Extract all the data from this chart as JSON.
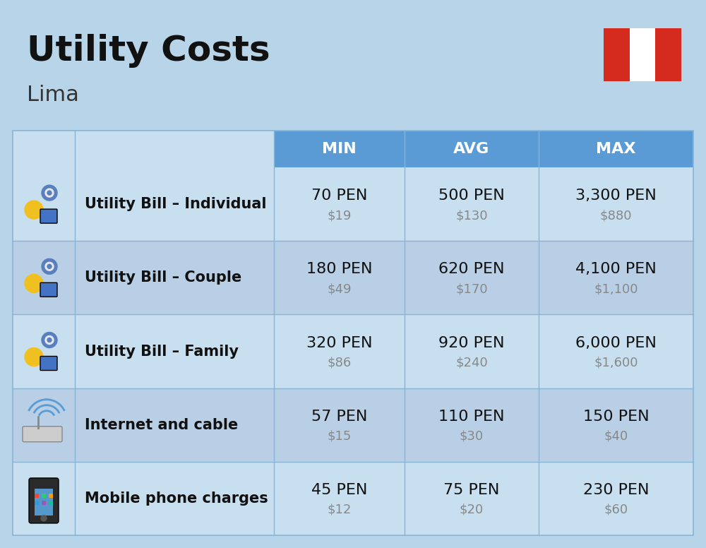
{
  "title": "Utility Costs",
  "subtitle": "Lima",
  "bg_color": "#b8d4e8",
  "header_bg": "#5b9bd5",
  "header_text_color": "#ffffff",
  "row_bg_light": "#c8dff0",
  "row_bg_dark": "#b8cfe5",
  "divider_color": "#8ab4d4",
  "header_cols": [
    "MIN",
    "AVG",
    "MAX"
  ],
  "rows": [
    {
      "label": "Utility Bill – Individual",
      "min_pen": "70 PEN",
      "min_usd": "$19",
      "avg_pen": "500 PEN",
      "avg_usd": "$130",
      "max_pen": "3,300 PEN",
      "max_usd": "$880"
    },
    {
      "label": "Utility Bill – Couple",
      "min_pen": "180 PEN",
      "min_usd": "$49",
      "avg_pen": "620 PEN",
      "avg_usd": "$170",
      "max_pen": "4,100 PEN",
      "max_usd": "$1,100"
    },
    {
      "label": "Utility Bill – Family",
      "min_pen": "320 PEN",
      "min_usd": "$86",
      "avg_pen": "920 PEN",
      "avg_usd": "$240",
      "max_pen": "6,000 PEN",
      "max_usd": "$1,600"
    },
    {
      "label": "Internet and cable",
      "min_pen": "57 PEN",
      "min_usd": "$15",
      "avg_pen": "110 PEN",
      "avg_usd": "$30",
      "max_pen": "150 PEN",
      "max_usd": "$40"
    },
    {
      "label": "Mobile phone charges",
      "min_pen": "45 PEN",
      "min_usd": "$12",
      "avg_pen": "75 PEN",
      "avg_usd": "$20",
      "max_pen": "230 PEN",
      "max_usd": "$60"
    }
  ],
  "flag_colors": [
    "#d52b1e",
    "#ffffff",
    "#d52b1e"
  ],
  "title_fontsize": 36,
  "subtitle_fontsize": 22,
  "header_fontsize": 16,
  "label_fontsize": 15,
  "value_fontsize": 16,
  "usd_fontsize": 13,
  "usd_color": "#888888"
}
